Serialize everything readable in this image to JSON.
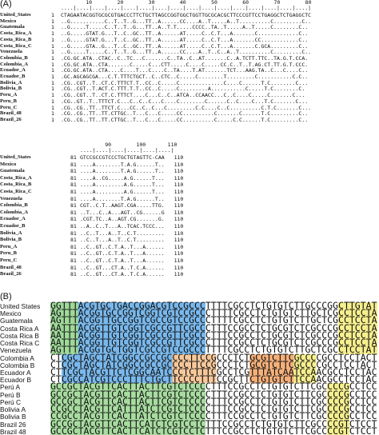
{
  "panel_a": {
    "label": "(A)",
    "block1": {
      "ruler": "....|....|....|....|....|....|....|....|....|....|....|....|....|....|....|....|",
      "ruler_numbers": [
        10,
        20,
        30,
        40,
        50,
        60,
        70,
        80
      ],
      "rows": [
        {
          "name": "United_States",
          "start": 1,
          "sequence": "CTAGAATACGGTGCGCGTGACCCTTCTGCTTAGCCGGTGGCTGGTTGCGCACGCTTCCCGTTCCTGAGGCTCTGAGGCTC"
        },
        {
          "name": "Mexico",
          "start": 1,
          "sequence": "..G...........C..T..T..G...TT..A......CC....A..T.....A..T..........C.........C.."
        },
        {
          "name": "Guatemala",
          "start": 1,
          "sequence": "..G.....T.....C..T..T..G...TT..A..T.T.....CCCC..TA..T.....A..T.....C........C.."
        },
        {
          "name": "Costa_Rica_A",
          "start": 1,
          "sequence": "..G.....GTAT.G...T..C..GC..TT..A......AT.....C..C.T...A.......C.............C.."
        },
        {
          "name": "Costa_Rica_B",
          "start": 1,
          "sequence": "..G.....GTAT.G...T..C..GC..TT..A......AT.....C..C.T...A.......CC............C.."
        },
        {
          "name": "Costa_Rica_C",
          "start": 1,
          "sequence": "..G.....GTA..G...T..C..GC..TT..A......AT.....C..C.T...A.......C.GCA.........C.."
        },
        {
          "name": "Venezuela",
          "start": 1,
          "sequence": "..G.....T.....C..T..T..G...TT..A......CC....A..T..C..A..T..........C.........C.."
        },
        {
          "name": "Colombia_B",
          "start": 1,
          "sequence": ".CG.GC.ATA..CTAC..C..TC...C.......C..TA..C..AT.......C..A.TCTT.TTC..TA.G.T.CCA."
        },
        {
          "name": "Colombia_A",
          "start": 1,
          "sequence": ".CG.GC.ATA..CTA.......C.....C...CTT.....C....C.....CC.C..T..T.AG.CT.TT.G.T.CCC."
        },
        {
          "name": "Ecuador_A",
          "start": 1,
          "sequence": ".CG.GC.ATA..CTA....C....T...C....C..TA....T.AT.......TCT...AAG.TA..C...C....C.."
        },
        {
          "name": "Ecuador_B",
          "start": 1,
          "sequence": ".GC.AGCAGCGA...C.T.TTTCTGCT..C..CTC..C.....C........T.........C...........C.C.."
        },
        {
          "name": "Bolivia_A",
          "start": 1,
          "sequence": ".CG..CGT..T..CT.C.TTTCT.T..CC..C.....C..............C....C......T.C........C..."
        },
        {
          "name": "Bolivia_B",
          "start": 1,
          "sequence": ".CG..CGT..T.ACT.C.TTT.T.T..CC..C.....C.........A...........C.....T.C........C."
        },
        {
          "name": "Peru_A",
          "start": 1,
          "sequence": ".CG..CGT..T..CT.C.TTTCT....C...C..C..ATCA..CCAACC...C..C....C.....C.......C..."
        },
        {
          "name": "Peru_B",
          "start": 1,
          "sequence": ".CG..GT..T..TTTCT.C...C..C..C...C....C........C......C..C....C...T.C.......C..."
        },
        {
          "name": "Peru_C",
          "start": 1,
          "sequence": ".CG..CG..TT..TTCT.C...CC..C..C...C.........C.C....C..C..........C.T.C.......C..."
        },
        {
          "name": "Brazil_48",
          "start": 1,
          "sequence": ".CG..CG..TT..TT.CTTGC..T...C...C.....CC..........C.......C......T.C.........C.."
        },
        {
          "name": "Brazil_26",
          "start": 1,
          "sequence": ".CG..CG..TT..TT.CTTGC..T...C...C.....CC..........C.....C.C......T.C.........C.."
        }
      ]
    },
    "block2": {
      "ruler": "....|....|....|....|....|....|",
      "ruler_numbers": [
        90,
        100,
        110
      ],
      "rows": [
        {
          "name": "United_States",
          "start": 81,
          "sequence": "GTCCGCCGTCCCTGCTGTAGTTC-CAA",
          "end": 110
        },
        {
          "name": "Mexico",
          "start": 81,
          "sequence": "....A........T.A.G......T..",
          "end": 110
        },
        {
          "name": "Guatemala",
          "start": 81,
          "sequence": "....A........T.A.G......T..",
          "end": 110
        },
        {
          "name": "Costa_Rica_A",
          "start": 81,
          "sequence": "....A..CG.....A.G......T...",
          "end": 110
        },
        {
          "name": "Costa_Rica_B",
          "start": 81,
          "sequence": "....A.........A.G......T...",
          "end": 110
        },
        {
          "name": "Costa_Rica_C",
          "start": 81,
          "sequence": "....A.........A.G......T...",
          "end": 110
        },
        {
          "name": "Venezuela",
          "start": 81,
          "sequence": "....A........T.A.G......T..",
          "end": 110
        },
        {
          "name": "Colombia_B",
          "start": 81,
          "sequence": "CGT..C.T..AAGT.CGA.....TTG.",
          "end": 110
        },
        {
          "name": "Colombia_A",
          "start": 81,
          "sequence": "..T...C..A...AGT..CG......G",
          "end": 110
        },
        {
          "name": "Ecuador_A",
          "start": 81,
          "sequence": ".CGT.TC..A..AGT.CG.......G.",
          "end": 110
        },
        {
          "name": "Ecuador_B",
          "start": 81,
          "sequence": "..A..C..T...A..TCAC.TCCC...",
          "end": 110
        },
        {
          "name": "Bolivia_A",
          "start": 81,
          "sequence": "..C..T...A..T..C.T.........",
          "end": 110
        },
        {
          "name": "Bolivia_B",
          "start": 81,
          "sequence": "..C..T...A..T..C.T.........",
          "end": 110
        },
        {
          "name": "Peru_A",
          "start": 81,
          "sequence": "..C..GT..C.T.A..T...A......",
          "end": 110
        },
        {
          "name": "Peru_B",
          "start": 81,
          "sequence": "..C..GT..C.T.A..T...A......",
          "end": 110
        },
        {
          "name": "Peru_C",
          "start": 81,
          "sequence": "..C..GT..C.T.A..T...A......",
          "end": 110
        },
        {
          "name": "Brazil_48",
          "start": 81,
          "sequence": "..C..GT...CT.A..T.C.A......",
          "end": 110
        },
        {
          "name": "Brazil_26",
          "start": 81,
          "sequence": "..C..GT...CT.A..T.C.A......",
          "end": 110
        }
      ]
    }
  },
  "panel_b": {
    "label": "(B)",
    "rows": [
      {
        "name": "United States",
        "sequence": "GGTTTACGTGCTGACCGGACGTCCGCCCTTTTCGCCTCTGTGTCTTGCCCGGCTTGTAT"
      },
      {
        "name": "Mexico",
        "sequence": "AGTTTACGGTGCCGGTCGGTCGTCCGCCCTTTTCGCCTCTGTGTCTTGCTCGCCTCCTA"
      },
      {
        "name": "Guatemala",
        "sequence": "AGTTTACGGTTGCCGGTCGCCGTCCGCCCTTTTCGCCTCTGTGTCTTGCTCGCCTCCTA"
      },
      {
        "name": "Costa Rica A",
        "sequence": "AATTTACGGTTGTCGGTCGCCGTTCGCCCTTTCCGCCTCTGCGTCTCGCCCGCCTCCTA"
      },
      {
        "name": "Costa Rica B",
        "sequence": "AATTTACGGTTGTCGGTCGCCGTTCGCCCTTTCCGCCTCTGCGTCTCGCCCGCCTCCTA"
      },
      {
        "name": "Costa Rica C",
        "sequence": "AATTTACGGTTGTCGGTCGCCGTTCGCCCTTTCCGCCTCTGCGTCTCGCCCGCCTCCTA"
      },
      {
        "name": "Venezuela",
        "sequence": "AGTTTACGGTGCTGGTCGCCGTCCGCCCTTTTCGCCTCTGTGTCTTGCTCGCCTCCTAT"
      },
      {
        "name": "Colombia A",
        "sequence": "CTCGCTAGCTATCGGCCGCCGCCCCTTCCGCCCTCTGCGTCTTCGCCCCGCCTCCTACT"
      },
      {
        "name": "Colombia B",
        "sequence": "CTCGCTAGCTATCGGCCGCCGCCCCTTCCGCCCTCTGCGTCTTCGCCCCGCCTCCTACT"
      },
      {
        "name": "Ecuador A",
        "sequence": "CTTCGCTACGTTCTCGGCAATCCCTCTTTCGCCTCGTTTATCAATCCAACGCCTCCTAC"
      },
      {
        "name": "Ecuador B",
        "sequence": "CTCGCCATCGTCCCTTTCTGCTTCCCCTTTCCGCTTCTGTGTCTTCCAACGCCTCCTAC"
      },
      {
        "name": "Perú A",
        "sequence": "GCCGCTACGTTCACTTACTTCGTCTCCCCTTTCCGCCTCTGTGTCTTCGCCCCGCCTCC"
      },
      {
        "name": "Perú B",
        "sequence": "GCCGCTACGTTCACTTACTTCGTCTCCCCTTTCCGCCTCTGTGTCTTCGCCCCGCCTCC"
      },
      {
        "name": "Perú C",
        "sequence": "GCCGCTACGTTCACTTACTTCGTCTCCCCTTTCCGCCTCTGTGTCTTCGCCCCGCCTCC"
      },
      {
        "name": "Bolivia A",
        "sequence": "CCGCCTACGTTCATTTATCTCGTCTCCCCTTTCCGCCTCTGTGTCTTCGCCCCGCCTCC"
      },
      {
        "name": "Bolivia B",
        "sequence": "CCGCCTACGTTCACTTATCTCGTCTCCCCTTTCCGCCTCTGTGTCTTCGCCCCGCCTCC"
      },
      {
        "name": "Brazil 26",
        "sequence": "GCCGCTACGTTCACTTCATCTCGTCCTCTTTCCGCCTCTGTGTCTTCGCCCCGTCTCCT"
      },
      {
        "name": "Brazil 48",
        "sequence": "GCCGCTACGTTCACTTCATCTCGTCCTCTTTCCGCCTCTGTGTCTTCGCCCCGTCTCCT"
      }
    ]
  }
}
